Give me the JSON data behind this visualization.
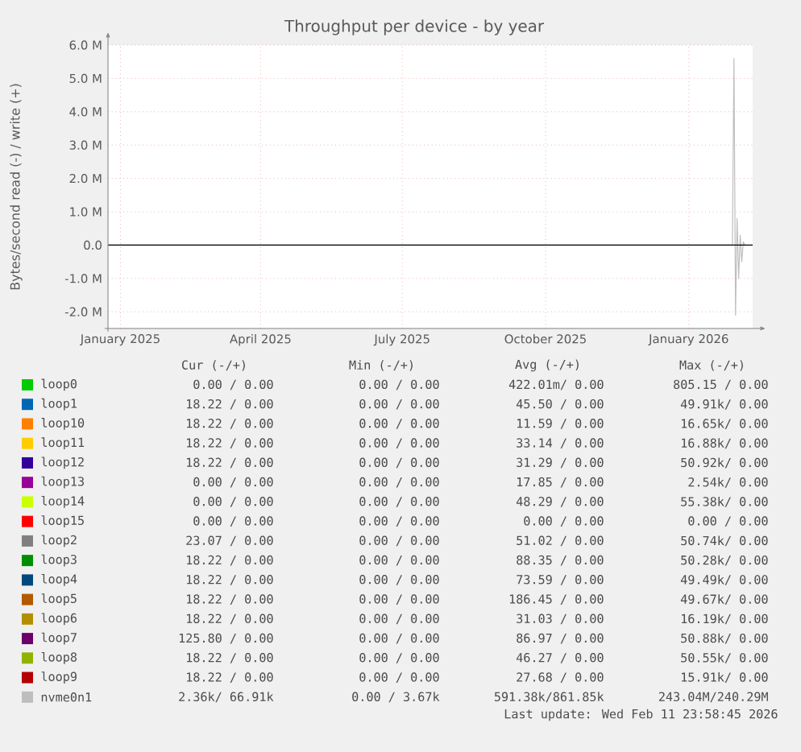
{
  "chart_data": {
    "type": "line",
    "title": "Throughput per device - by year",
    "ylabel": "Bytes/second read (-) / write (+)",
    "x": [
      "2024-12-24",
      "2026-01-29",
      "2026-01-30",
      "2026-01-31",
      "2026-02-01",
      "2026-02-02",
      "2026-02-03",
      "2026-02-04",
      "2026-02-05",
      "2026-02-06"
    ],
    "xlim": [
      "2024-12-24",
      "2026-02-11"
    ],
    "xticks": [
      {
        "value": "2025-01-01",
        "label": "January 2025"
      },
      {
        "value": "2025-04-01",
        "label": "April 2025"
      },
      {
        "value": "2025-07-01",
        "label": "July 2025"
      },
      {
        "value": "2025-10-01",
        "label": "October 2025"
      },
      {
        "value": "2026-01-01",
        "label": "January 2026"
      }
    ],
    "ylim": [
      -2500000,
      6000000
    ],
    "yticks": [
      {
        "value": -2000000,
        "label": "-2.0 M"
      },
      {
        "value": -1000000,
        "label": "-1.0 M"
      },
      {
        "value": 0,
        "label": "0.0"
      },
      {
        "value": 1000000,
        "label": "1.0 M"
      },
      {
        "value": 2000000,
        "label": "2.0 M"
      },
      {
        "value": 3000000,
        "label": "3.0 M"
      },
      {
        "value": 4000000,
        "label": "4.0 M"
      },
      {
        "value": 5000000,
        "label": "5.0 M"
      },
      {
        "value": 6000000,
        "label": "6.0 M"
      }
    ],
    "grid": true,
    "legend": "bottom",
    "marker": "none",
    "line_style": "solid",
    "ref_lines": [
      {
        "axis": "y",
        "value": 0,
        "color": "#000000"
      }
    ],
    "series": [
      {
        "name": "loop0",
        "color": "#00cc00",
        "values": [
          null,
          null,
          null,
          null,
          null,
          null,
          null,
          null,
          null,
          null
        ]
      },
      {
        "name": "loop1",
        "color": "#0066b3",
        "values": [
          null,
          null,
          null,
          null,
          null,
          null,
          null,
          null,
          null,
          null
        ]
      },
      {
        "name": "loop10",
        "color": "#ff8000",
        "values": [
          null,
          null,
          null,
          null,
          null,
          null,
          null,
          null,
          null,
          null
        ]
      },
      {
        "name": "loop11",
        "color": "#ffcc00",
        "values": [
          null,
          null,
          null,
          null,
          null,
          null,
          null,
          null,
          null,
          null
        ]
      },
      {
        "name": "loop12",
        "color": "#330099",
        "values": [
          null,
          null,
          null,
          null,
          null,
          null,
          null,
          null,
          null,
          null
        ]
      },
      {
        "name": "loop13",
        "color": "#990099",
        "values": [
          null,
          null,
          null,
          null,
          null,
          null,
          null,
          null,
          null,
          null
        ]
      },
      {
        "name": "loop14",
        "color": "#ccff00",
        "values": [
          null,
          null,
          null,
          null,
          null,
          null,
          null,
          null,
          null,
          null
        ]
      },
      {
        "name": "loop15",
        "color": "#ff0000",
        "values": [
          null,
          null,
          null,
          null,
          null,
          null,
          null,
          null,
          null,
          null
        ]
      },
      {
        "name": "loop2",
        "color": "#808080",
        "values": [
          null,
          null,
          null,
          null,
          null,
          null,
          null,
          null,
          null,
          null
        ]
      },
      {
        "name": "loop3",
        "color": "#008f00",
        "values": [
          null,
          null,
          null,
          null,
          null,
          null,
          null,
          null,
          null,
          null
        ]
      },
      {
        "name": "loop4",
        "color": "#00487d",
        "values": [
          null,
          null,
          null,
          null,
          null,
          null,
          null,
          null,
          null,
          null
        ]
      },
      {
        "name": "loop5",
        "color": "#b35a00",
        "values": [
          null,
          null,
          null,
          null,
          null,
          null,
          null,
          null,
          null,
          null
        ]
      },
      {
        "name": "loop6",
        "color": "#b38f00",
        "values": [
          null,
          null,
          null,
          null,
          null,
          null,
          null,
          null,
          null,
          null
        ]
      },
      {
        "name": "loop7",
        "color": "#6b006b",
        "values": [
          null,
          null,
          null,
          null,
          null,
          null,
          null,
          null,
          null,
          null
        ]
      },
      {
        "name": "loop8",
        "color": "#8fb300",
        "values": [
          null,
          null,
          null,
          null,
          null,
          null,
          null,
          null,
          null,
          null
        ]
      },
      {
        "name": "loop9",
        "color": "#b30000",
        "values": [
          null,
          null,
          null,
          null,
          null,
          null,
          null,
          null,
          null,
          null
        ]
      },
      {
        "name": "nvme0n1",
        "color": "#bebebe",
        "values": [
          0,
          0,
          5600000,
          -2100000,
          800000,
          -1000000,
          300000,
          -500000,
          100000,
          0
        ]
      }
    ],
    "annotations": [
      "Cur (-/+)",
      "Min (-/+)",
      "Avg (-/+)",
      "Max (-/+)",
      "0.00 / 0.00",
      "0.00 / 0.00",
      "422.01m/ 0.00",
      "805.15 / 0.00",
      "18.22 / 0.00",
      "0.00 / 0.00",
      "45.50 / 0.00",
      "49.91k/ 0.00",
      "18.22 / 0.00",
      "0.00 / 0.00",
      "11.59 / 0.00",
      "16.65k/ 0.00",
      "18.22 / 0.00",
      "0.00 / 0.00",
      "33.14 / 0.00",
      "16.88k/ 0.00",
      "18.22 / 0.00",
      "0.00 / 0.00",
      "31.29 / 0.00",
      "50.92k/ 0.00",
      "0.00 / 0.00",
      "0.00 / 0.00",
      "17.85 / 0.00",
      "2.54k/ 0.00",
      "0.00 / 0.00",
      "0.00 / 0.00",
      "48.29 / 0.00",
      "55.38k/ 0.00",
      "0.00 / 0.00",
      "0.00 / 0.00",
      "0.00 / 0.00",
      "0.00 / 0.00",
      "23.07 / 0.00",
      "0.00 / 0.00",
      "51.02 / 0.00",
      "50.74k/ 0.00",
      "18.22 / 0.00",
      "0.00 / 0.00",
      "88.35 / 0.00",
      "50.28k/ 0.00",
      "18.22 / 0.00",
      "0.00 / 0.00",
      "73.59 / 0.00",
      "49.49k/ 0.00",
      "18.22 / 0.00",
      "0.00 / 0.00",
      "186.45 / 0.00",
      "49.67k/ 0.00",
      "18.22 / 0.00",
      "0.00 / 0.00",
      "31.03 / 0.00",
      "16.19k/ 0.00",
      "125.80 / 0.00",
      "0.00 / 0.00",
      "86.97 / 0.00",
      "50.88k/ 0.00",
      "18.22 / 0.00",
      "0.00 / 0.00",
      "46.27 / 0.00",
      "50.55k/ 0.00",
      "18.22 / 0.00",
      "0.00 / 0.00",
      "27.68 / 0.00",
      "15.91k/ 0.00",
      "2.36k/ 66.91k",
      "0.00 / 3.67k",
      "591.38k/861.85k",
      "243.04M/240.29M",
      "Last update: Wed Feb 11 23:58:45 2026"
    ]
  }
}
